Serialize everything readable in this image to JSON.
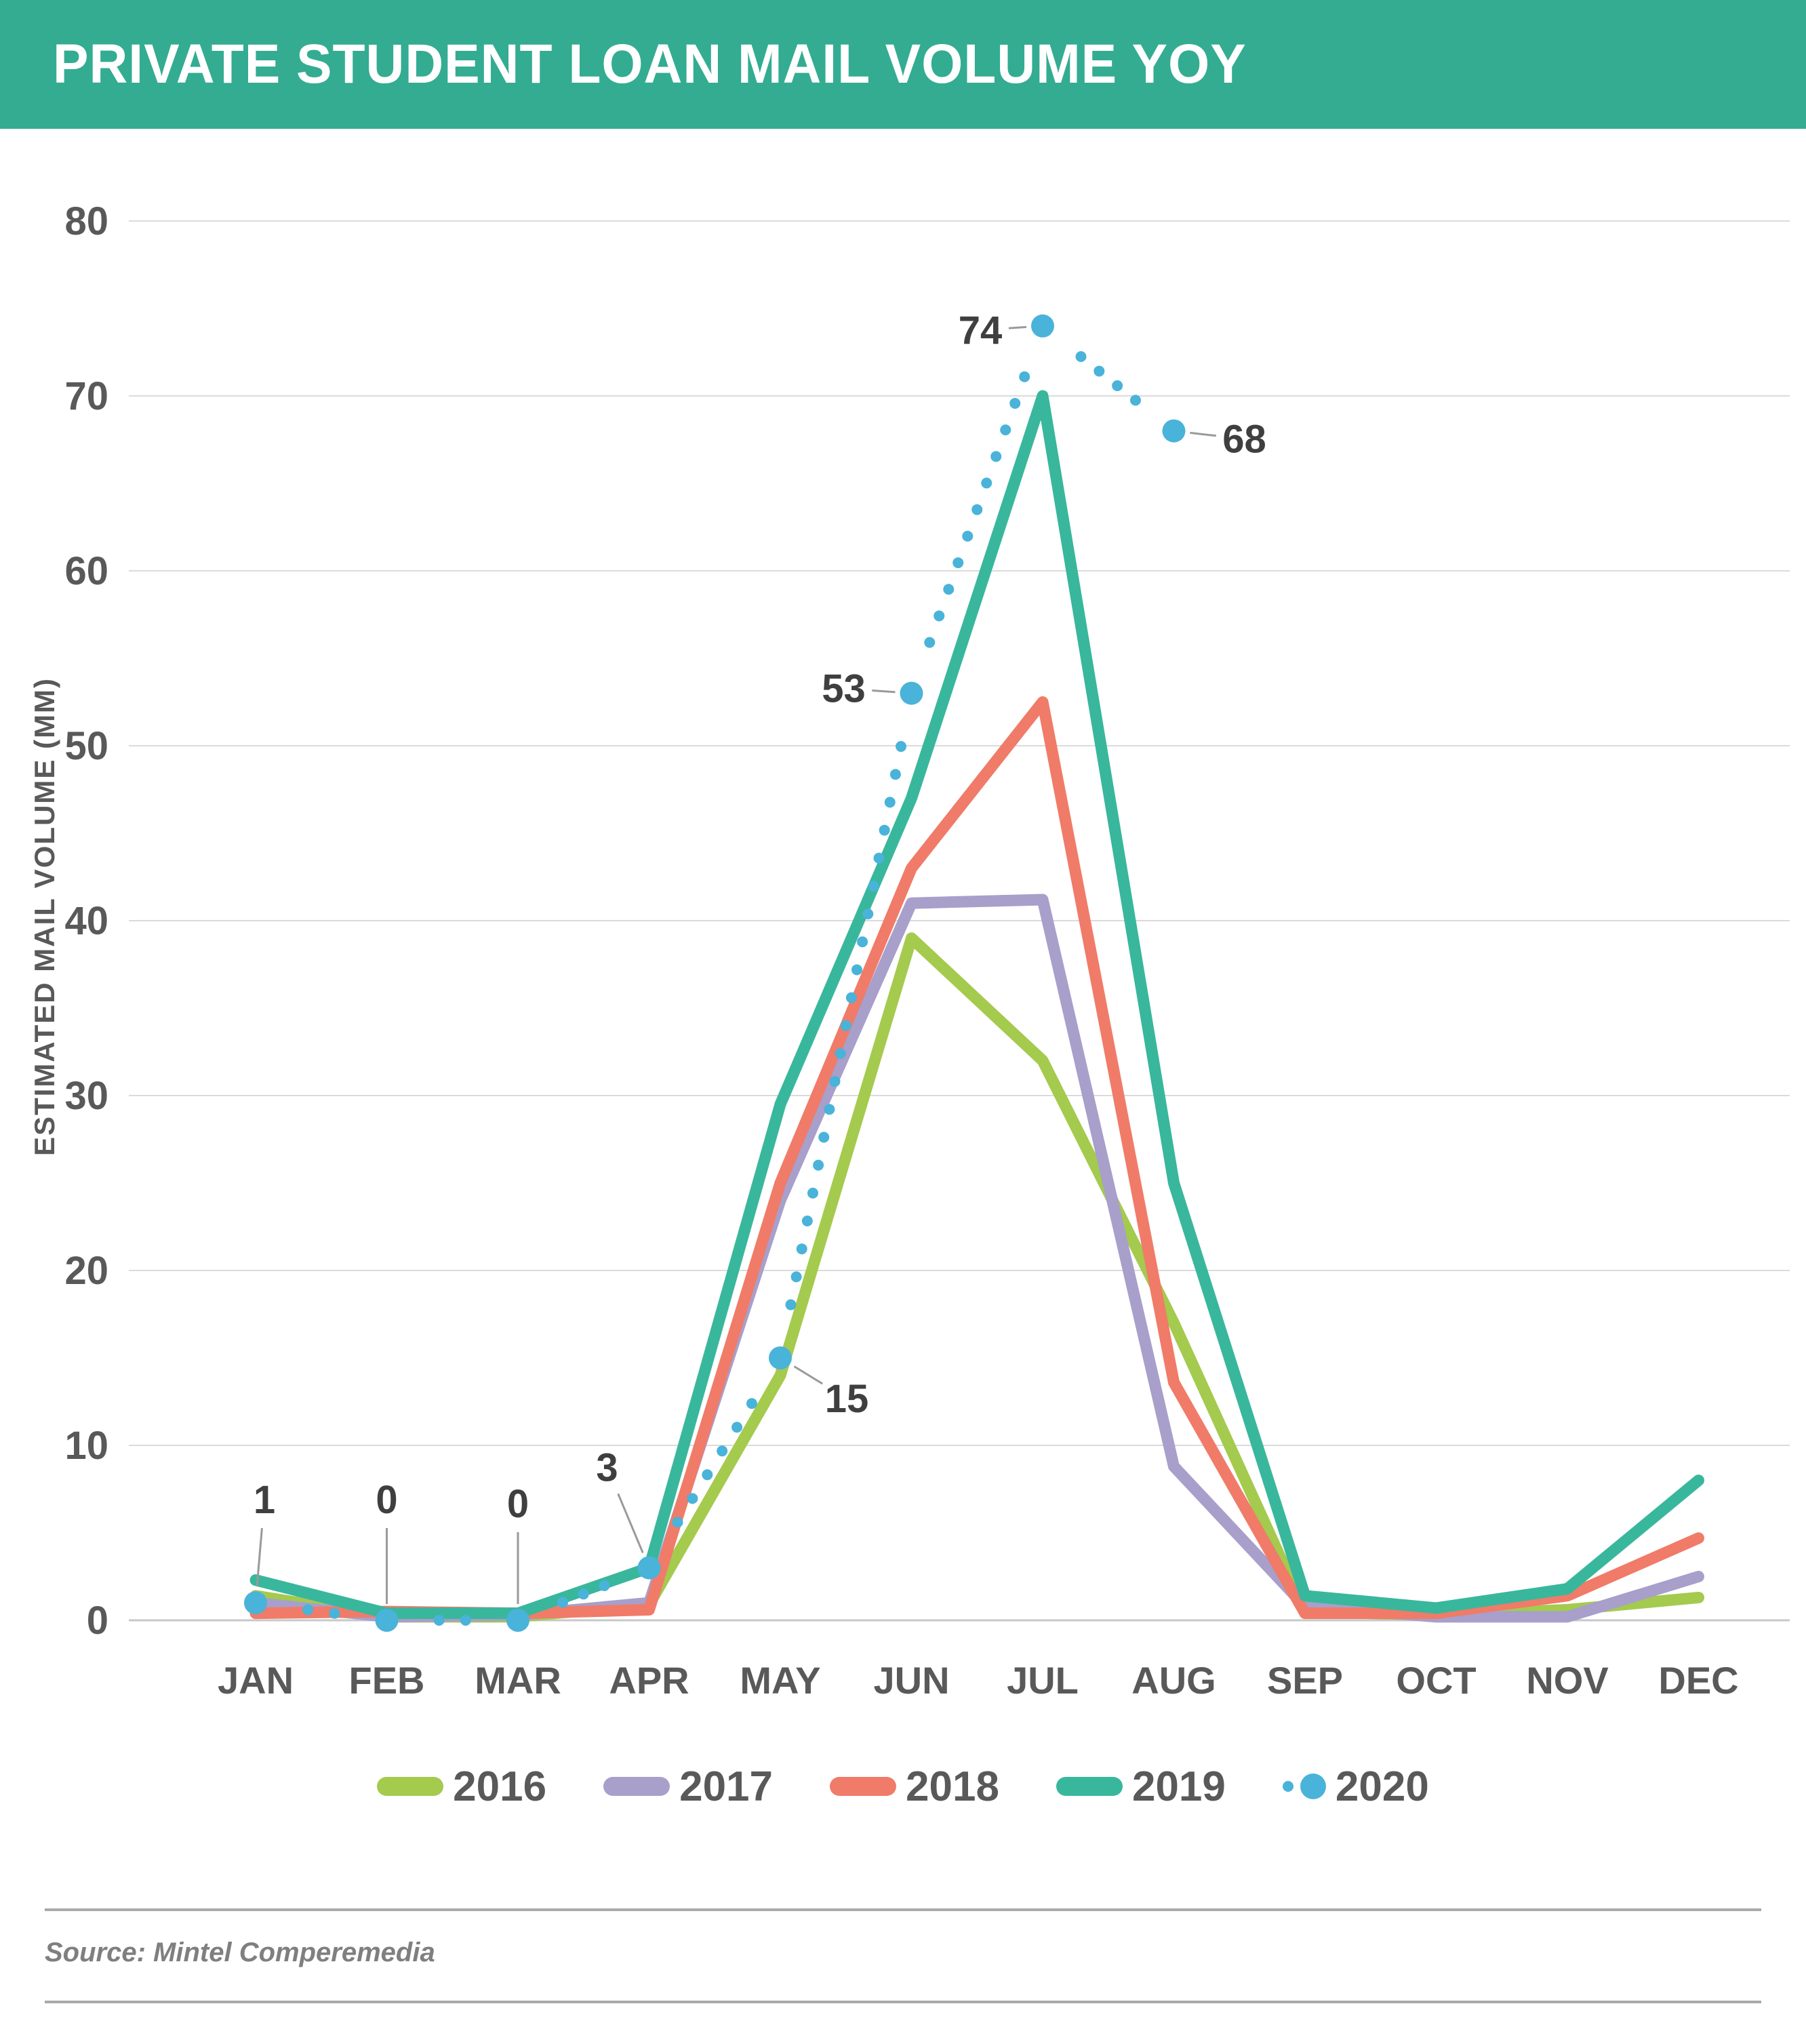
{
  "header": {
    "title": "PRIVATE STUDENT LOAN MAIL VOLUME YOY",
    "background_color": "#33AC92"
  },
  "chart_data": {
    "type": "line",
    "title": "PRIVATE STUDENT LOAN MAIL VOLUME YOY",
    "xlabel": "",
    "ylabel": "ESTIMATED MAIL VOLUME (MM)",
    "ylim": [
      0,
      80
    ],
    "yticks": [
      0,
      10,
      20,
      30,
      40,
      50,
      60,
      70,
      80
    ],
    "grid": "horizontal",
    "legend_position": "bottom",
    "categories": [
      "JAN",
      "FEB",
      "MAR",
      "APR",
      "MAY",
      "JUN",
      "JUL",
      "AUG",
      "SEP",
      "OCT",
      "NOV",
      "DEC"
    ],
    "series": [
      {
        "name": "2016",
        "color": "#A4CA4E",
        "style": "solid",
        "values": [
          1.4,
          0.2,
          0.2,
          0.9,
          14,
          39,
          32,
          17,
          0.5,
          0.3,
          0.6,
          1.3
        ]
      },
      {
        "name": "2017",
        "color": "#A89FCB",
        "style": "solid",
        "values": [
          1.0,
          0.2,
          0.3,
          1.0,
          24,
          41,
          41.2,
          8.8,
          0.8,
          0.2,
          0.2,
          2.5
        ]
      },
      {
        "name": "2018",
        "color": "#F07B68",
        "style": "solid",
        "values": [
          0.4,
          0.5,
          0.4,
          0.6,
          25,
          43,
          52.5,
          13.6,
          0.4,
          0.4,
          1.4,
          4.7
        ]
      },
      {
        "name": "2019",
        "color": "#39B79C",
        "style": "solid",
        "values": [
          2.3,
          0.4,
          0.4,
          3.0,
          29.5,
          47,
          70,
          25,
          1.4,
          0.7,
          1.8,
          8.0
        ]
      },
      {
        "name": "2020",
        "color": "#49B3D9",
        "style": "dotted",
        "values": [
          1,
          0,
          0,
          3,
          15,
          53,
          74,
          68,
          null,
          null,
          null,
          null
        ],
        "point_labels": [
          {
            "month": 0,
            "text": "1",
            "dx": 13,
            "dy": -152
          },
          {
            "month": 1,
            "text": "0",
            "dx": 0,
            "dy": -178
          },
          {
            "month": 2,
            "text": "0",
            "dx": 0,
            "dy": -172
          },
          {
            "month": 3,
            "text": "3",
            "dx": -62,
            "dy": -148
          },
          {
            "month": 4,
            "text": "15",
            "dx": 98,
            "dy": 60
          },
          {
            "month": 5,
            "text": "53",
            "dx": -100,
            "dy": -7
          },
          {
            "month": 6,
            "text": "74",
            "dx": -92,
            "dy": 6
          },
          {
            "month": 7,
            "text": "68",
            "dx": 104,
            "dy": 12
          }
        ]
      }
    ],
    "colors": {
      "gridline": "#DBDBDB",
      "baseline": "#C8C8C8",
      "tick_label": "#595959",
      "month_label": "#595959",
      "data_label": "#3F3F3F",
      "leader_line": "#9A9A9A"
    }
  },
  "source": {
    "text": "Source: Mintel Comperemedia"
  }
}
